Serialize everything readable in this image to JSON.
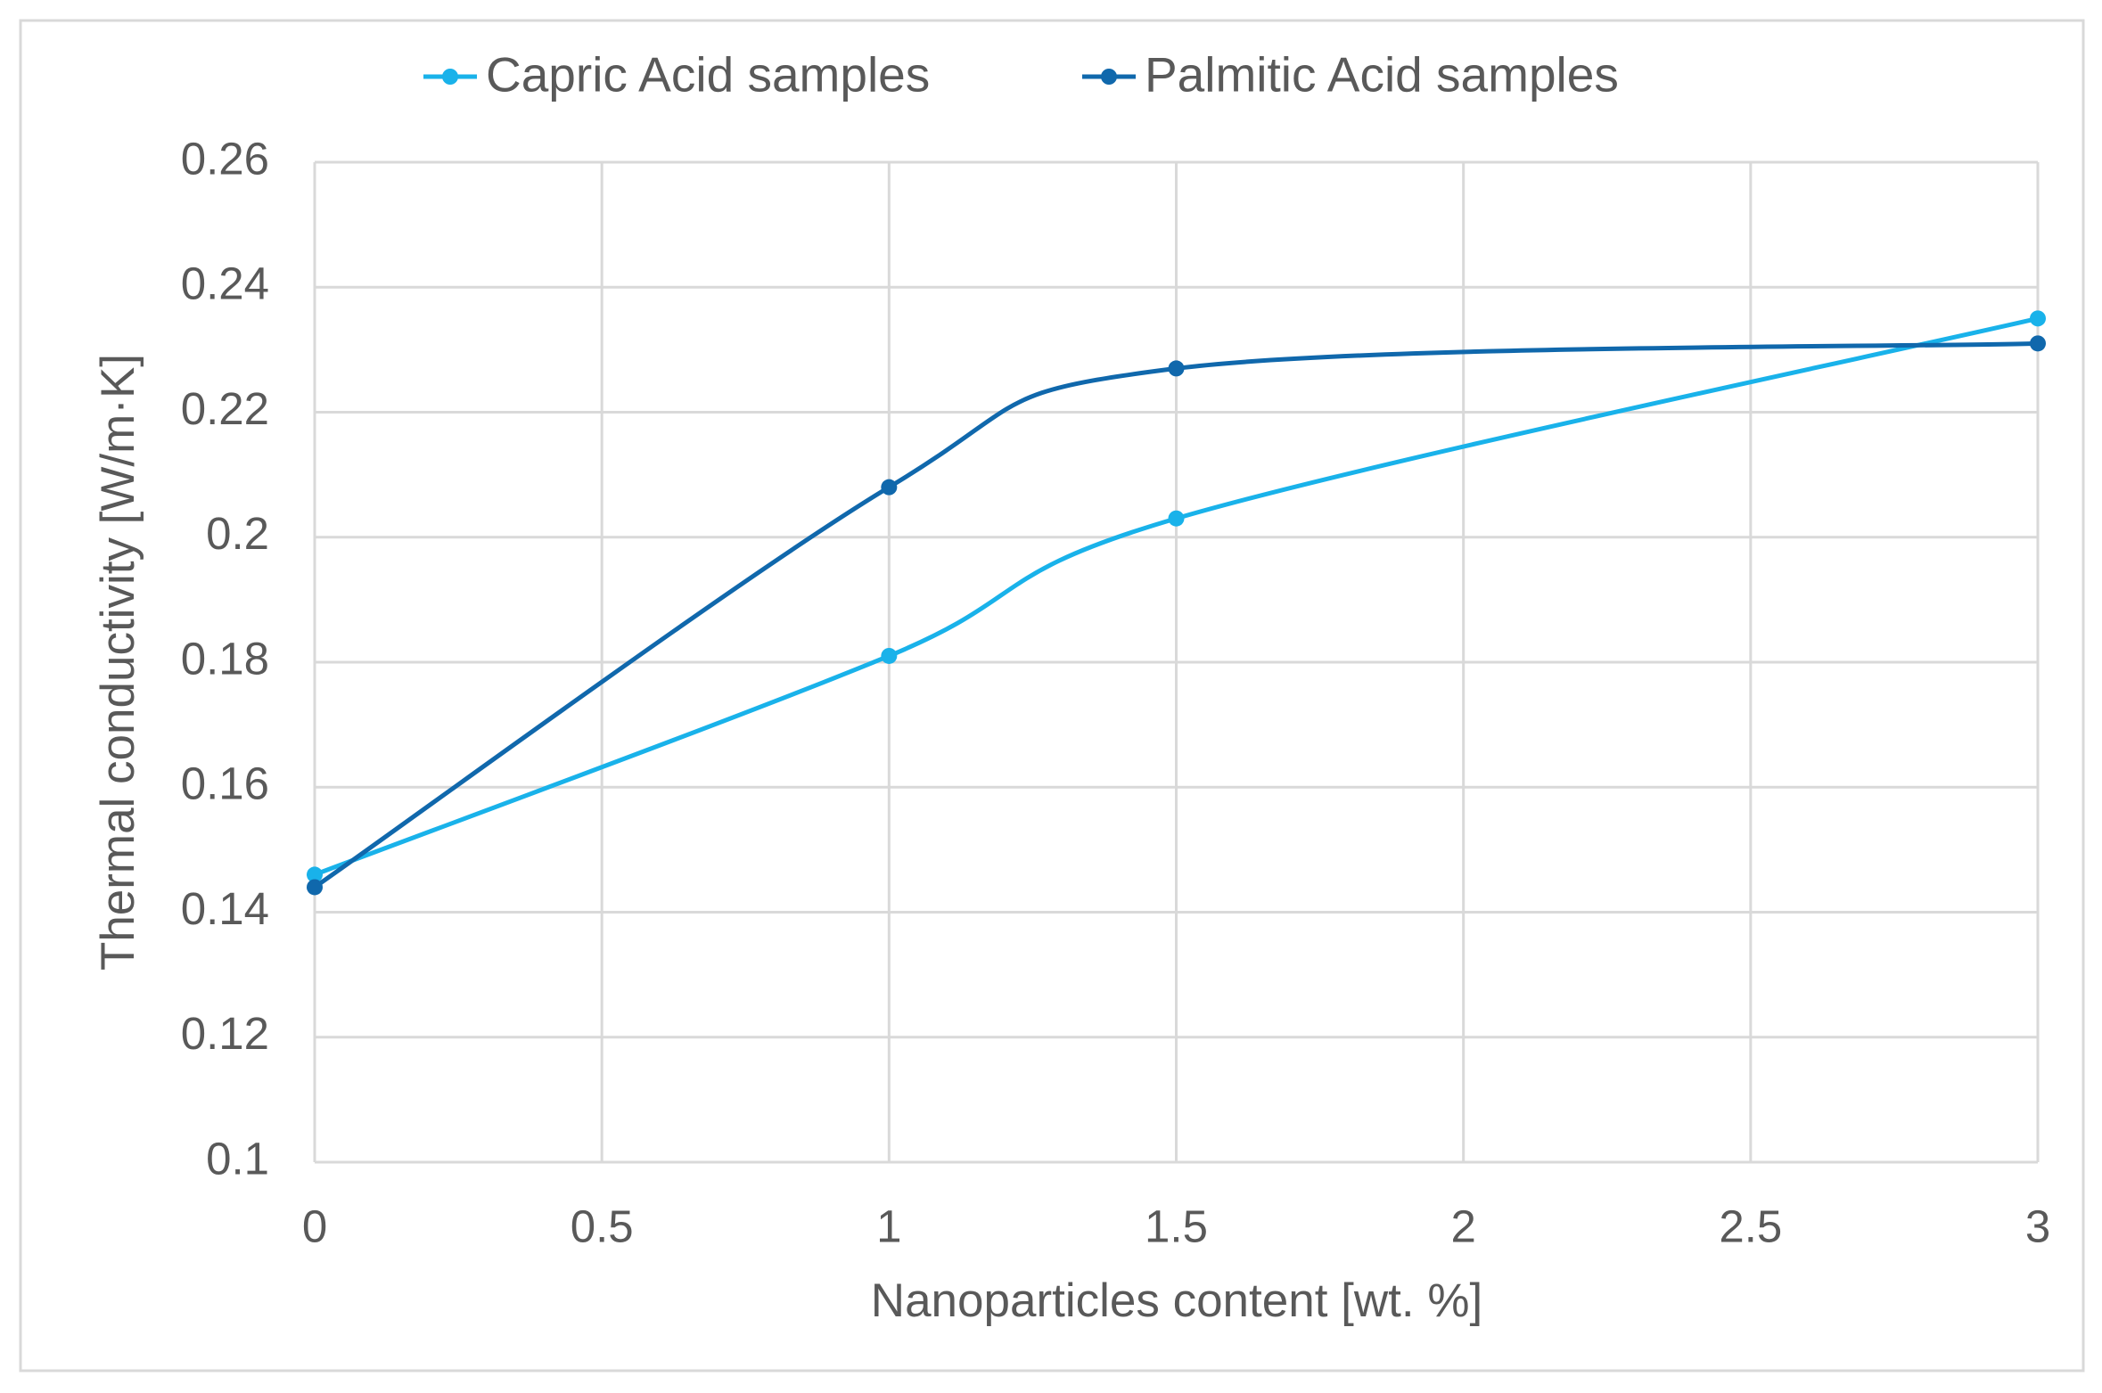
{
  "chart_data": {
    "type": "line",
    "smooth": true,
    "xlabel": "Nanoparticles content [wt. %]",
    "ylabel": "Thermal conductivity  [W/m·K]",
    "series": [
      {
        "name": "Capric Acid samples",
        "color": "#19b2ea",
        "x": [
          0,
          1,
          1.5,
          3
        ],
        "values": [
          0.146,
          0.181,
          0.203,
          0.235
        ]
      },
      {
        "name": "Palmitic Acid samples",
        "color": "#1068ac",
        "x": [
          0,
          1,
          1.5,
          3
        ],
        "values": [
          0.144,
          0.208,
          0.227,
          0.231
        ]
      }
    ],
    "xlim": [
      0,
      3
    ],
    "xticks": [
      0,
      0.5,
      1,
      1.5,
      2,
      2.5,
      3
    ],
    "ylim": [
      0.1,
      0.26
    ],
    "yticks": [
      0.1,
      0.12,
      0.14,
      0.16,
      0.18,
      0.2,
      0.22,
      0.24,
      0.26
    ],
    "grid": true,
    "legend": "top"
  }
}
